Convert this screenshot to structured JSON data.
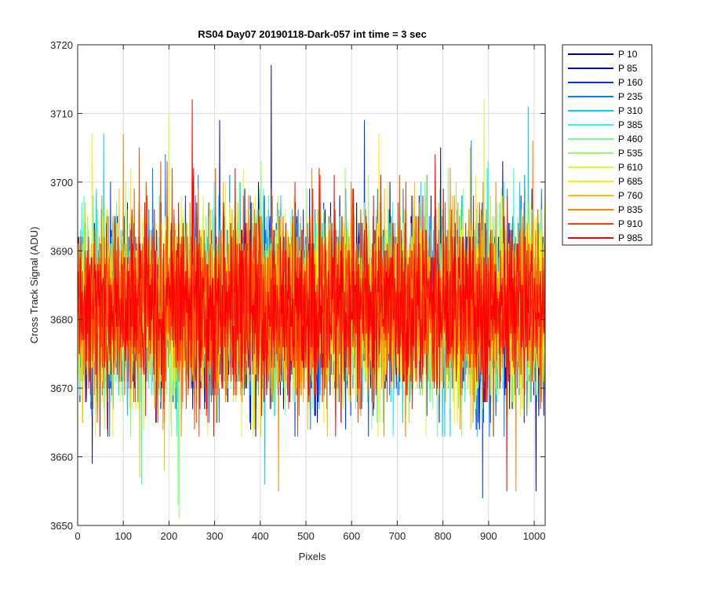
{
  "chart_data": {
    "type": "line",
    "title": "RS04 Day07 20190118-Dark-057 int time = 3 sec",
    "xlabel": "Pixels",
    "ylabel": "Cross Track Signal (ADU)",
    "xlim": [
      0,
      1024
    ],
    "ylim": [
      3650,
      3720
    ],
    "xticks": [
      0,
      100,
      200,
      300,
      400,
      500,
      600,
      700,
      800,
      900,
      1000
    ],
    "yticks": [
      3650,
      3660,
      3670,
      3680,
      3690,
      3700,
      3710,
      3720
    ],
    "grid": true,
    "legend_location": "outside-right-top",
    "x_range": [
      1,
      1024
    ],
    "noise_mean": 3682,
    "noise_sigma": 6.5,
    "series": [
      {
        "name": "P 10",
        "color": "#00008F",
        "peaks": [
          {
            "x": 32,
            "y": 3659
          },
          {
            "x": 1004,
            "y": 3655
          }
        ]
      },
      {
        "name": "P 85",
        "color": "#0000DF",
        "peaks": [
          {
            "x": 424,
            "y": 3717
          },
          {
            "x": 311,
            "y": 3709
          }
        ]
      },
      {
        "name": "P 160",
        "color": "#0030FF",
        "peaks": [
          {
            "x": 628,
            "y": 3709
          },
          {
            "x": 887,
            "y": 3654
          }
        ]
      },
      {
        "name": "P 235",
        "color": "#0080FF",
        "peaks": [
          {
            "x": 862,
            "y": 3706
          }
        ]
      },
      {
        "name": "P 310",
        "color": "#00CFFF",
        "peaks": [
          {
            "x": 57,
            "y": 3707
          },
          {
            "x": 987,
            "y": 3711
          },
          {
            "x": 410,
            "y": 3656
          }
        ]
      },
      {
        "name": "P 385",
        "color": "#20FFDF",
        "peaks": [
          {
            "x": 140,
            "y": 3656
          }
        ]
      },
      {
        "name": "P 460",
        "color": "#70FF8F",
        "peaks": [
          {
            "x": 220,
            "y": 3653
          }
        ]
      },
      {
        "name": "P 535",
        "color": "#8FFF70",
        "peaks": [
          {
            "x": 222,
            "y": 3651
          }
        ]
      },
      {
        "name": "P 610",
        "color": "#CFFF30",
        "peaks": [
          {
            "x": 890,
            "y": 3712
          },
          {
            "x": 200,
            "y": 3710
          }
        ]
      },
      {
        "name": "P 685",
        "color": "#FFEF00",
        "peaks": [
          {
            "x": 32,
            "y": 3707
          },
          {
            "x": 660,
            "y": 3707
          }
        ]
      },
      {
        "name": "P 760",
        "color": "#FFBF00",
        "peaks": [
          {
            "x": 136,
            "y": 3657
          },
          {
            "x": 190,
            "y": 3658
          }
        ]
      },
      {
        "name": "P 835",
        "color": "#FF8000",
        "peaks": [
          {
            "x": 440,
            "y": 3655
          },
          {
            "x": 960,
            "y": 3655
          }
        ]
      },
      {
        "name": "P 910",
        "color": "#FF4000",
        "peaks": [
          {
            "x": 135,
            "y": 3705
          }
        ]
      },
      {
        "name": "P 985",
        "color": "#FF0000",
        "peaks": [
          {
            "x": 251,
            "y": 3712
          },
          {
            "x": 940,
            "y": 3655
          }
        ]
      }
    ]
  }
}
